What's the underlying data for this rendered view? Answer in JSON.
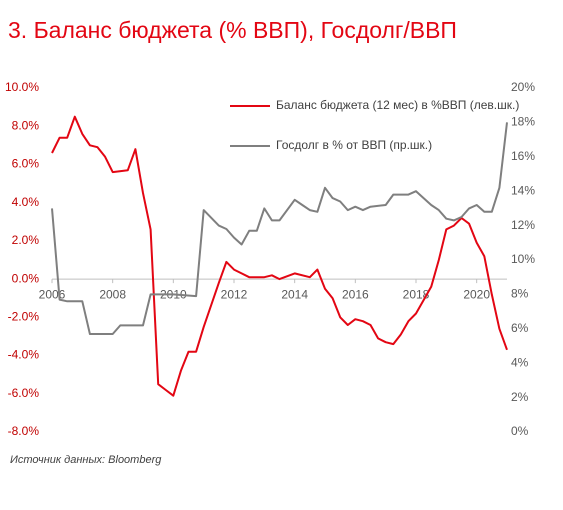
{
  "chart_data": {
    "type": "line",
    "title": "3. Баланс бюджета (% ВВП), Госдолг/ВВП",
    "source": "Источник данных: Bloomberg",
    "xlim": [
      2006,
      2021
    ],
    "xticks": [
      2006,
      2008,
      2010,
      2012,
      2014,
      2016,
      2018,
      2020
    ],
    "ylim": [
      -8,
      10
    ],
    "yticks": [
      {
        "value": -8,
        "label": "-8.0%"
      },
      {
        "value": -6,
        "label": "-6.0%"
      },
      {
        "value": -4,
        "label": "-4.0%"
      },
      {
        "value": -2,
        "label": "-2.0%"
      },
      {
        "value": 0,
        "label": "0.0%"
      },
      {
        "value": 2,
        "label": "2.0%"
      },
      {
        "value": 4,
        "label": "4.0%"
      },
      {
        "value": 6,
        "label": "6.0%"
      },
      {
        "value": 8,
        "label": "8.0%"
      },
      {
        "value": 10,
        "label": "10.0%"
      }
    ],
    "y2lim": [
      0,
      20
    ],
    "y2ticks": [
      {
        "value": 0,
        "label": "0%"
      },
      {
        "value": 2,
        "label": "2%"
      },
      {
        "value": 4,
        "label": "4%"
      },
      {
        "value": 6,
        "label": "6%"
      },
      {
        "value": 8,
        "label": "8%"
      },
      {
        "value": 10,
        "label": "10%"
      },
      {
        "value": 12,
        "label": "12%"
      },
      {
        "value": 14,
        "label": "14%"
      },
      {
        "value": 16,
        "label": "16%"
      },
      {
        "value": 18,
        "label": "18%"
      },
      {
        "value": 20,
        "label": "20%"
      }
    ],
    "series": [
      {
        "name": "Баланс бюджета (12 мес) в %ВВП (лев.шк.)",
        "color": "#e30613",
        "axis": "y",
        "x": [
          2006.0,
          2006.25,
          2006.5,
          2006.75,
          2007.0,
          2007.25,
          2007.5,
          2007.75,
          2008.0,
          2008.5,
          2008.75,
          2009.0,
          2009.25,
          2009.5,
          2009.75,
          2010.0,
          2010.25,
          2010.5,
          2010.75,
          2011.0,
          2011.5,
          2011.75,
          2012.0,
          2012.25,
          2012.5,
          2013.0,
          2013.25,
          2013.5,
          2014.0,
          2014.5,
          2014.75,
          2015.0,
          2015.25,
          2015.5,
          2015.75,
          2016.0,
          2016.25,
          2016.5,
          2016.75,
          2017.0,
          2017.25,
          2017.5,
          2017.75,
          2018.0,
          2018.5,
          2018.75,
          2019.0,
          2019.25,
          2019.5,
          2019.75,
          2020.0,
          2020.25,
          2020.5,
          2020.75,
          2021.0
        ],
        "values": [
          6.6,
          7.4,
          7.4,
          8.5,
          7.6,
          7.0,
          6.9,
          6.4,
          5.6,
          5.7,
          6.8,
          4.5,
          2.6,
          -5.5,
          -5.8,
          -6.1,
          -4.8,
          -3.8,
          -3.8,
          -2.5,
          -0.2,
          0.9,
          0.5,
          0.3,
          0.1,
          0.1,
          0.2,
          0.0,
          0.3,
          0.1,
          0.5,
          -0.5,
          -1.0,
          -2.0,
          -2.4,
          -2.1,
          -2.2,
          -2.4,
          -3.1,
          -3.3,
          -3.4,
          -2.9,
          -2.2,
          -1.8,
          -0.4,
          1.0,
          2.6,
          2.8,
          3.2,
          2.9,
          1.9,
          1.2,
          -0.8,
          -2.6,
          -3.7
        ]
      },
      {
        "name": "Госдолг в % от ВВП (пр.шк.)",
        "color": "#7f7f7f",
        "axis": "y2",
        "x": [
          2006.0,
          2006.25,
          2006.5,
          2007.0,
          2007.25,
          2008.0,
          2008.25,
          2009.0,
          2009.25,
          2010.0,
          2010.75,
          2011.0,
          2011.5,
          2011.75,
          2012.0,
          2012.25,
          2012.5,
          2012.75,
          2013.0,
          2013.25,
          2013.5,
          2014.0,
          2014.25,
          2014.5,
          2014.75,
          2015.0,
          2015.25,
          2015.5,
          2015.75,
          2016.0,
          2016.25,
          2016.5,
          2017.0,
          2017.25,
          2017.75,
          2018.0,
          2018.25,
          2018.5,
          2018.75,
          2019.0,
          2019.25,
          2019.5,
          2019.75,
          2020.0,
          2020.25,
          2020.5,
          2020.75,
          2021.0
        ],
        "values": [
          13.0,
          7.7,
          7.6,
          7.6,
          5.7,
          5.7,
          6.2,
          6.2,
          8.0,
          8.0,
          7.9,
          12.9,
          12.0,
          11.8,
          11.3,
          10.9,
          11.7,
          11.7,
          13.0,
          12.3,
          12.3,
          13.5,
          13.2,
          12.9,
          12.8,
          14.2,
          13.6,
          13.4,
          12.9,
          13.1,
          12.9,
          13.1,
          13.2,
          13.8,
          13.8,
          14.0,
          13.6,
          13.2,
          12.9,
          12.4,
          12.3,
          12.5,
          13.0,
          13.2,
          12.8,
          12.8,
          14.2,
          18.0
        ]
      }
    ]
  }
}
